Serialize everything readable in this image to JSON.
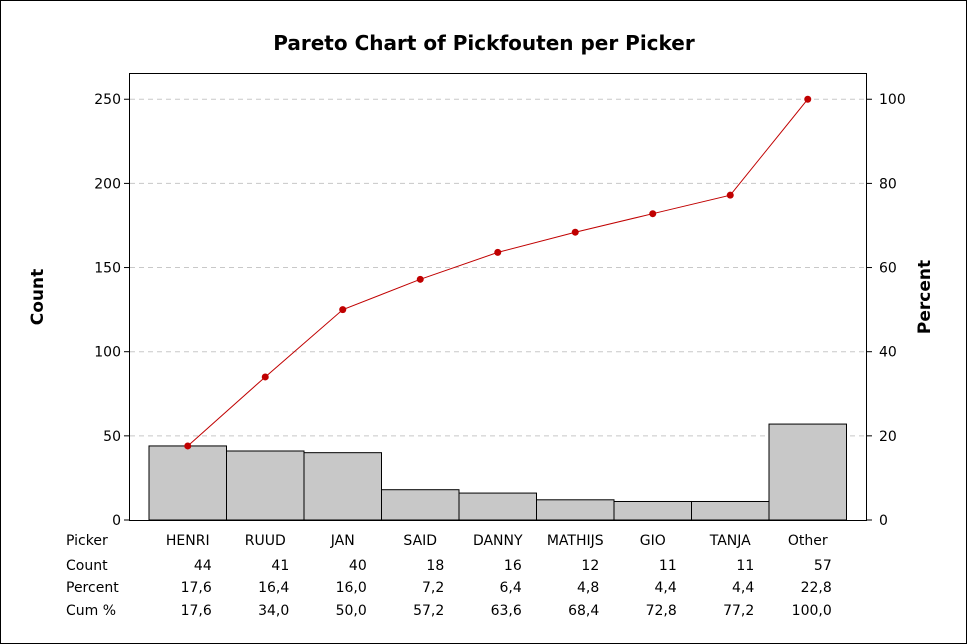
{
  "chart_data": {
    "type": "bar",
    "title": "Pareto Chart of Pickfouten per Picker",
    "ylabel": "Count",
    "y2label": "Percent",
    "ylim": [
      0,
      265
    ],
    "y_ticks": [
      0,
      50,
      100,
      150,
      200,
      250
    ],
    "y2lim": [
      0,
      106
    ],
    "y2_ticks": [
      0,
      20,
      40,
      60,
      80,
      100
    ],
    "grid": true,
    "categories": [
      "HENRI",
      "RUUD",
      "JAN",
      "SAID",
      "DANNY",
      "MATHIJS",
      "GIO",
      "TANJA",
      "Other"
    ],
    "series": [
      {
        "type": "bar",
        "values": [
          44,
          41,
          40,
          18,
          16,
          12,
          11,
          11,
          57
        ]
      },
      {
        "type": "line",
        "axis": "right",
        "values": [
          17.6,
          34.0,
          50.0,
          57.2,
          63.6,
          68.4,
          72.8,
          77.2,
          100.0
        ]
      }
    ],
    "table": {
      "row_labels": [
        "Picker",
        "Count",
        "Percent",
        "Cum %"
      ],
      "count": [
        "44",
        "41",
        "40",
        "18",
        "16",
        "12",
        "11",
        "11",
        "57"
      ],
      "percent": [
        "17,6",
        "16,4",
        "16,0",
        "7,2",
        "6,4",
        "4,8",
        "4,4",
        "4,4",
        "22,8"
      ],
      "cum_percent": [
        "17,6",
        "34,0",
        "50,0",
        "57,2",
        "63,6",
        "68,4",
        "72,8",
        "77,2",
        "100,0"
      ]
    },
    "colors": {
      "bar_fill": "#c8c8c8",
      "bar_stroke": "#000000",
      "line": "#c00000",
      "grid": "#c8c8c8"
    }
  }
}
